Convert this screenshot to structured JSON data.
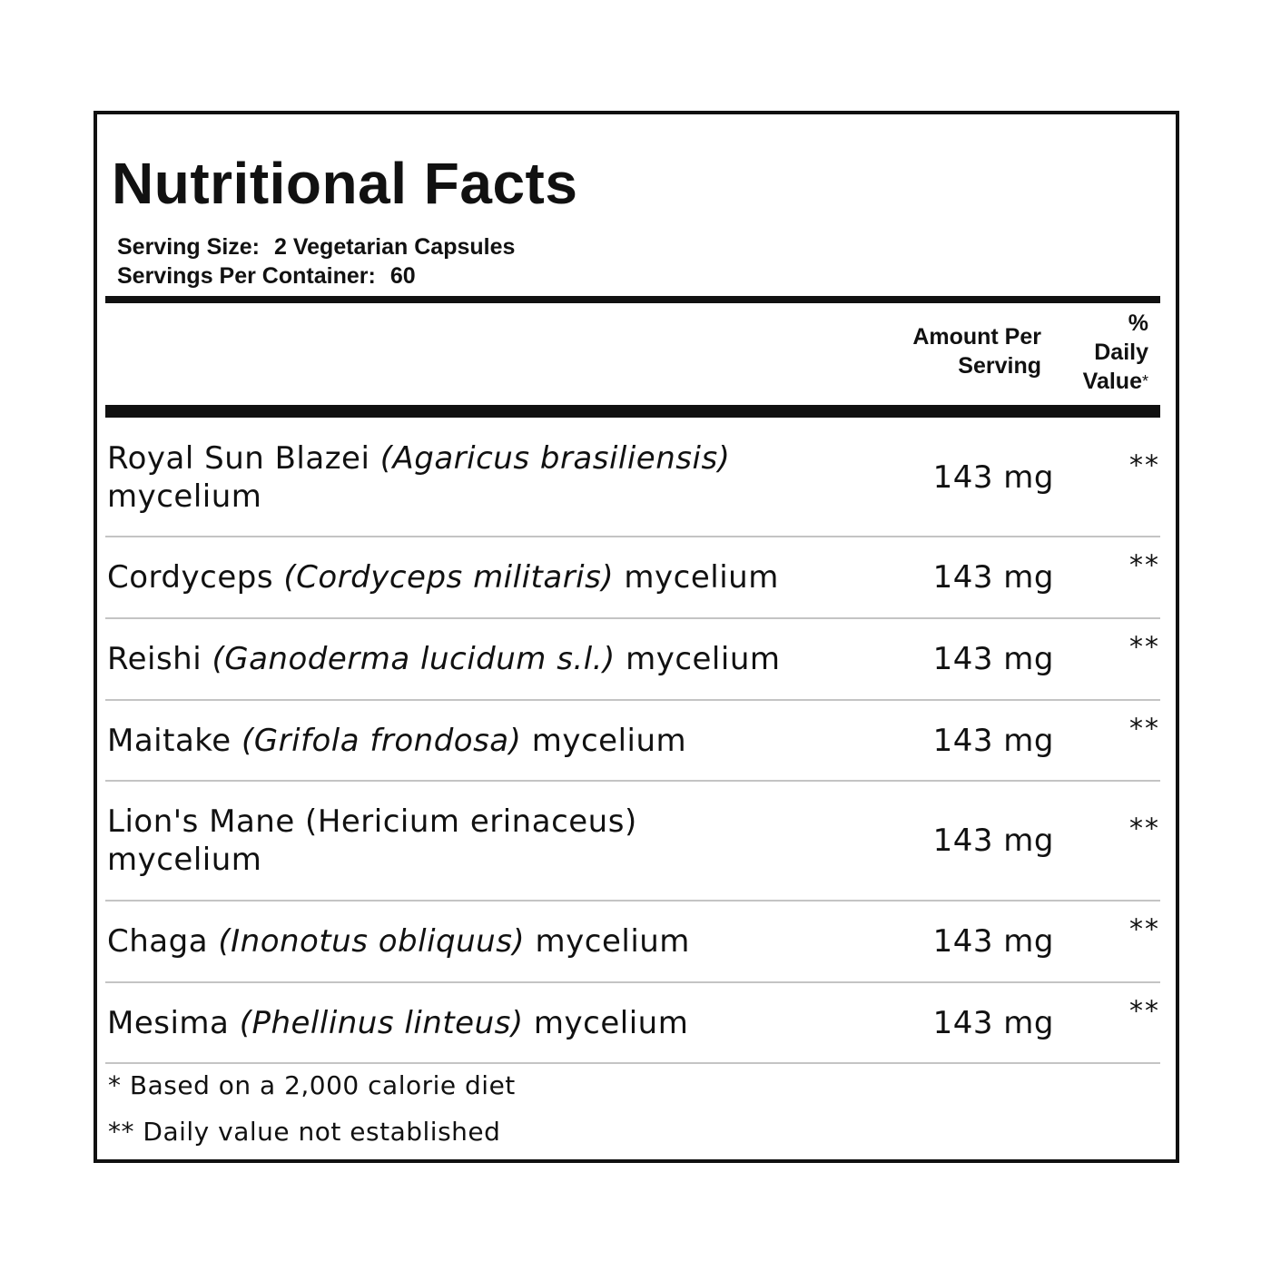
{
  "title": "Nutritional Facts",
  "serving_size": {
    "label": "Serving Size:",
    "value": "2 Vegetarian Capsules"
  },
  "servings_per_container": {
    "label": "Servings Per Container:",
    "value": "60"
  },
  "columns": {
    "amount_line1": "Amount Per",
    "amount_line2": "Serving",
    "dv_line1": "%",
    "dv_line2": "Daily",
    "dv_line3": "Value",
    "dv_marker": "*"
  },
  "rows": [
    {
      "common": "Royal Sun Blazei",
      "latin": "(Agaricus brasiliensis)",
      "suffix": "mycelium",
      "amount": "143 mg",
      "dv": "**"
    },
    {
      "common": "Cordyceps",
      "latin": "(Cordyceps militaris)",
      "suffix": "mycelium",
      "amount": "143 mg",
      "dv": "**"
    },
    {
      "common": "Reishi",
      "latin": "(Ganoderma lucidum s.l.)",
      "suffix": "mycelium",
      "amount": "143 mg",
      "dv": "**"
    },
    {
      "common": "Maitake",
      "latin": "(Grifola frondosa)",
      "suffix": "mycelium",
      "amount": "143 mg",
      "dv": "**"
    },
    {
      "common": "Lion's Mane (Hericium erinaceus)",
      "latin": "",
      "suffix": "mycelium",
      "amount": "143 mg",
      "dv": "**"
    },
    {
      "common": "Chaga",
      "latin": "(Inonotus obliquus)",
      "suffix": "mycelium",
      "amount": "143 mg",
      "dv": "**"
    },
    {
      "common": "Mesima",
      "latin": "(Phellinus linteus)",
      "suffix": "mycelium",
      "amount": "143 mg",
      "dv": "**"
    }
  ],
  "footnotes": [
    "* Based on a 2,000 calorie diet",
    "** Daily value not established"
  ]
}
